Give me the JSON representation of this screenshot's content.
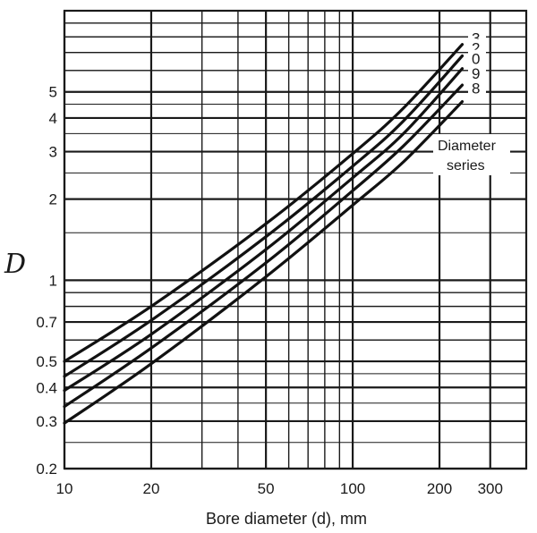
{
  "chart_data": {
    "type": "line",
    "title": "",
    "xlabel": "Bore diameter (d), mm",
    "ylabel": "D",
    "x_scale": "log",
    "y_scale": "log",
    "xlim": [
      10,
      400
    ],
    "ylim": [
      0.2,
      10
    ],
    "grid": true,
    "x_ticks": [
      10,
      20,
      50,
      100,
      200,
      300
    ],
    "x_tick_labels": [
      "10",
      "20",
      "50",
      "100",
      "200",
      "300"
    ],
    "y_ticks": [
      0.2,
      0.3,
      0.4,
      0.5,
      0.7,
      1,
      2,
      3,
      4,
      5
    ],
    "y_tick_labels": [
      "0.2",
      "0.3",
      "0.4",
      "0.5",
      "0.7",
      "1",
      "2",
      "3",
      "4",
      "5"
    ],
    "annotation": [
      "Diameter",
      "series"
    ],
    "series": [
      {
        "name": "3",
        "x": [
          10,
          20,
          50,
          100,
          150,
          240
        ],
        "y": [
          0.5,
          0.8,
          1.62,
          2.95,
          4.35,
          7.5
        ]
      },
      {
        "name": "2",
        "x": [
          10,
          20,
          50,
          100,
          150,
          240
        ],
        "y": [
          0.44,
          0.71,
          1.45,
          2.65,
          3.9,
          6.8
        ]
      },
      {
        "name": "0",
        "x": [
          10,
          20,
          50,
          100,
          150,
          240
        ],
        "y": [
          0.39,
          0.63,
          1.3,
          2.4,
          3.5,
          6.1
        ]
      },
      {
        "name": "9",
        "x": [
          10,
          20,
          50,
          100,
          150,
          240
        ],
        "y": [
          0.34,
          0.56,
          1.16,
          2.15,
          3.15,
          5.3
        ]
      },
      {
        "name": "8",
        "x": [
          10,
          20,
          50,
          100,
          150,
          240
        ],
        "y": [
          0.295,
          0.49,
          1.03,
          1.9,
          2.75,
          4.6
        ]
      }
    ]
  }
}
